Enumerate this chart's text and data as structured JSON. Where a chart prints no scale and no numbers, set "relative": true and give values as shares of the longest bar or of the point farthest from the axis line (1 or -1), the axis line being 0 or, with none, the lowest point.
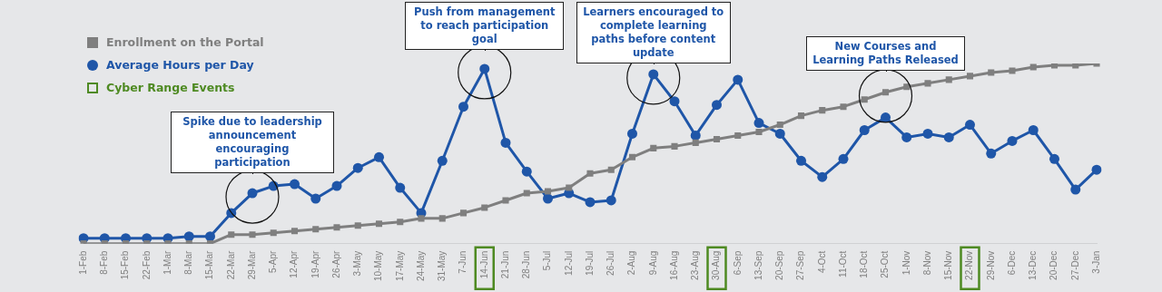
{
  "chart_data": {
    "type": "line",
    "relative": true,
    "legend": "top left",
    "line_style": "solid",
    "categories": [
      "1-Feb",
      "8-Feb",
      "15-Feb",
      "22-Feb",
      "1-Mar",
      "8-Mar",
      "15-Mar",
      "22-Mar",
      "29-Mar",
      "5-Apr",
      "12-Apr",
      "19-Apr",
      "26-Apr",
      "3-May",
      "10-May",
      "17-May",
      "24-May",
      "31-May",
      "7-Jun",
      "14-Jun",
      "21-Jun",
      "28-Jun",
      "5-Jul",
      "12-Jul",
      "19-Jul",
      "26-Jul",
      "2-Aug",
      "9-Aug",
      "16-Aug",
      "23-Aug",
      "30-Aug",
      "6-Sep",
      "13-Sep",
      "20-Sep",
      "27-Sep",
      "4-Oct",
      "11-Oct",
      "18-Oct",
      "25-Oct",
      "1-Nov",
      "8-Nov",
      "15-Nov",
      "22-Nov",
      "29-Nov",
      "6-Dec",
      "13-Dec",
      "20-Dec",
      "27-Dec",
      "3-Jan"
    ],
    "series": [
      {
        "name": "Enrollment on the Portal",
        "color": "#7f7f7f",
        "type": "line",
        "marker": "square",
        "values": [
          0,
          0,
          0,
          0,
          0,
          0,
          0,
          0.05,
          0.05,
          0.06,
          0.07,
          0.08,
          0.09,
          0.1,
          0.11,
          0.12,
          0.14,
          0.14,
          0.17,
          0.2,
          0.24,
          0.28,
          0.29,
          0.31,
          0.39,
          0.41,
          0.48,
          0.53,
          0.54,
          0.56,
          0.58,
          0.6,
          0.62,
          0.66,
          0.71,
          0.74,
          0.76,
          0.8,
          0.84,
          0.87,
          0.89,
          0.91,
          0.93,
          0.95,
          0.96,
          0.98,
          0.99,
          0.99,
          1.0
        ]
      },
      {
        "name": "Average Hours per Day",
        "color": "#1f56a8",
        "type": "line",
        "marker": "circle",
        "values": [
          0.03,
          0.03,
          0.03,
          0.03,
          0.03,
          0.04,
          0.04,
          0.17,
          0.28,
          0.32,
          0.33,
          0.25,
          0.32,
          0.42,
          0.48,
          0.31,
          0.17,
          0.46,
          0.76,
          0.97,
          0.56,
          0.4,
          0.25,
          0.28,
          0.23,
          0.24,
          0.61,
          0.94,
          0.79,
          0.6,
          0.77,
          0.91,
          0.67,
          0.61,
          0.46,
          0.37,
          0.47,
          0.63,
          0.7,
          0.59,
          0.61,
          0.59,
          0.66,
          0.5,
          0.57,
          0.63,
          0.47,
          0.3,
          0.41
        ]
      },
      {
        "name": "Cyber Range Events",
        "color": "#4e8a22",
        "type": "scatter",
        "marker": "square",
        "x": [
          "14-Jun",
          "30-Aug",
          "22-Nov"
        ],
        "values": [
          null,
          null,
          null
        ]
      }
    ],
    "annotations": [
      {
        "text": "Spike due to leadership announcement encouraging participation",
        "x": "29-Mar",
        "y": 0.28
      },
      {
        "text": "Push from management to reach participation goal",
        "x": "14-Jun",
        "y": 0.97
      },
      {
        "text": "Learners encouraged to complete learning paths before content update",
        "x": "9-Aug",
        "y": 0.94
      },
      {
        "text": "New Courses and Learning Paths Released",
        "x": "25-Oct",
        "y": 0.84
      }
    ]
  }
}
